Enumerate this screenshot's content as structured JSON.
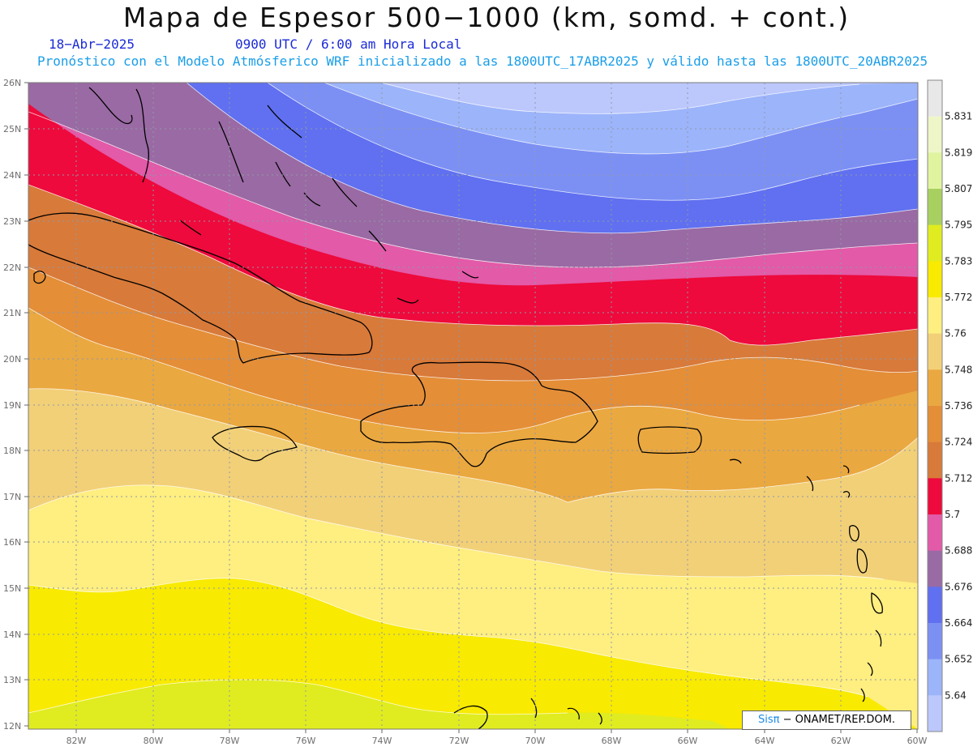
{
  "title": "Mapa de Espesor 500−1000 (km, somd. + cont.)",
  "date_line": "18−Abr−2025",
  "time_line": "0900 UTC / 6:00 am Hora Local",
  "model_line": "Pronóstico con el Modelo Atmósferico WRF inicializado a las 1800UTC_17ABR2025 y válido hasta las  1800UTC_20ABR2025",
  "credit": {
    "brand": "Sisπ",
    "rest": " − ONAMET/REP.DOM."
  },
  "lat_ticks": [
    "26N",
    "25N",
    "24N",
    "23N",
    "22N",
    "21N",
    "20N",
    "19N",
    "18N",
    "17N",
    "16N",
    "15N",
    "14N",
    "13N",
    "12N"
  ],
  "lon_ticks": [
    "82W",
    "80W",
    "78W",
    "76W",
    "74W",
    "72W",
    "70W",
    "68W",
    "66W",
    "64W",
    "62W",
    "60W"
  ],
  "colorbar": {
    "labels": [
      "5.831",
      "5.819",
      "5.807",
      "5.795",
      "5.783",
      "5.772",
      "5.76",
      "5.748",
      "5.736",
      "5.724",
      "5.712",
      "5.7",
      "5.688",
      "5.676",
      "5.664",
      "5.652",
      "5.64"
    ],
    "colors": [
      "#e8e8e8",
      "#eef6c8",
      "#e0f4a0",
      "#a8d060",
      "#e0ec20",
      "#f8ea00",
      "#ffee80",
      "#f2d078",
      "#eaa840",
      "#e48e38",
      "#d87a3a",
      "#ee0a3c",
      "#e25aa8",
      "#9a6aa4",
      "#6070f0",
      "#7c90f4",
      "#9cb4fa",
      "#bcc8fc"
    ],
    "unit": "km"
  }
}
